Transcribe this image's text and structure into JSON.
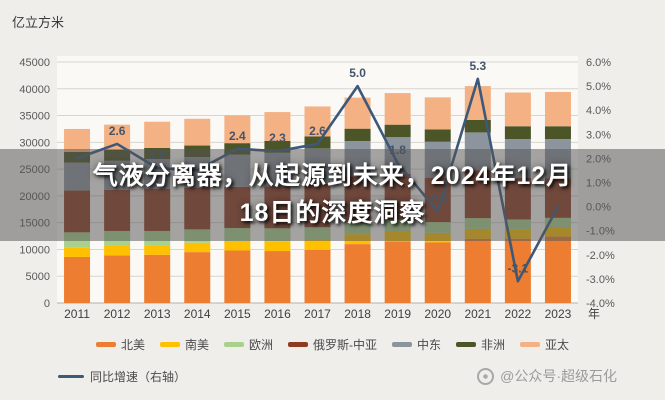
{
  "page": {
    "unit_label": "亿立方米",
    "x_axis_suffix": "年",
    "watermark_text": "@公众号·超级石化"
  },
  "banner": {
    "line1": "气液分离器，从起源到未来，2024年12月",
    "line2": "18日的深度洞察"
  },
  "chart_data": {
    "type": "bar",
    "stacked": true,
    "title": "",
    "unit": "亿立方米",
    "grid": true,
    "legend_position": "bottom",
    "categories": [
      "2011",
      "2012",
      "2013",
      "2014",
      "2015",
      "2016",
      "2017",
      "2018",
      "2019",
      "2020",
      "2021",
      "2022",
      "2023"
    ],
    "series": [
      {
        "name": "北美",
        "color": "#ED7D31",
        "values": [
          8600,
          8900,
          9000,
          9500,
          9800,
          9700,
          9900,
          11000,
          11500,
          11300,
          12000,
          12000,
          12400
        ]
      },
      {
        "name": "南美",
        "color": "#FFC000",
        "values": [
          1700,
          1750,
          1750,
          1750,
          1800,
          1850,
          1850,
          1850,
          1850,
          1800,
          1850,
          1800,
          1800
        ]
      },
      {
        "name": "欧洲",
        "color": "#A9D18E",
        "values": [
          2900,
          2800,
          2700,
          2500,
          2400,
          2400,
          2400,
          2300,
          2200,
          2000,
          2000,
          1800,
          1700
        ]
      },
      {
        "name": "俄罗斯-中亚",
        "color": "#8E3B22",
        "values": [
          7800,
          7700,
          7900,
          7800,
          7700,
          7800,
          8200,
          8500,
          8600,
          8300,
          8900,
          7800,
          7400
        ]
      },
      {
        "name": "中东",
        "color": "#8C959D",
        "values": [
          5200,
          5400,
          5500,
          5700,
          6000,
          6300,
          6500,
          6600,
          6800,
          6700,
          7100,
          7200,
          7300
        ]
      },
      {
        "name": "非洲",
        "color": "#4C5527",
        "values": [
          2000,
          2050,
          2100,
          2150,
          2150,
          2200,
          2250,
          2300,
          2350,
          2300,
          2350,
          2400,
          2400
        ]
      },
      {
        "name": "亚太",
        "color": "#F4B183",
        "values": [
          4300,
          4700,
          4900,
          5000,
          5200,
          5400,
          5600,
          5800,
          5900,
          6000,
          6300,
          6300,
          6400
        ]
      }
    ],
    "line_series": {
      "name": "同比增速（右轴）",
      "color": "#3D5878",
      "axis": "right",
      "values": [
        2.0,
        2.6,
        1.6,
        1.5,
        2.4,
        2.3,
        2.6,
        5.0,
        1.8,
        -0.2,
        5.3,
        -3.1,
        0.0
      ],
      "labels": [
        "",
        "2.6",
        "1.6",
        "",
        "2.4",
        "2.3",
        "2.6",
        "5.0",
        "1.8",
        "-0.2",
        "5.3",
        "-3.1",
        ""
      ]
    },
    "left_axis": {
      "min": 0,
      "max": 45000,
      "step": 5000
    },
    "right_axis": {
      "min": -4,
      "max": 6,
      "step": 1,
      "zero_label": "0.0%"
    }
  }
}
